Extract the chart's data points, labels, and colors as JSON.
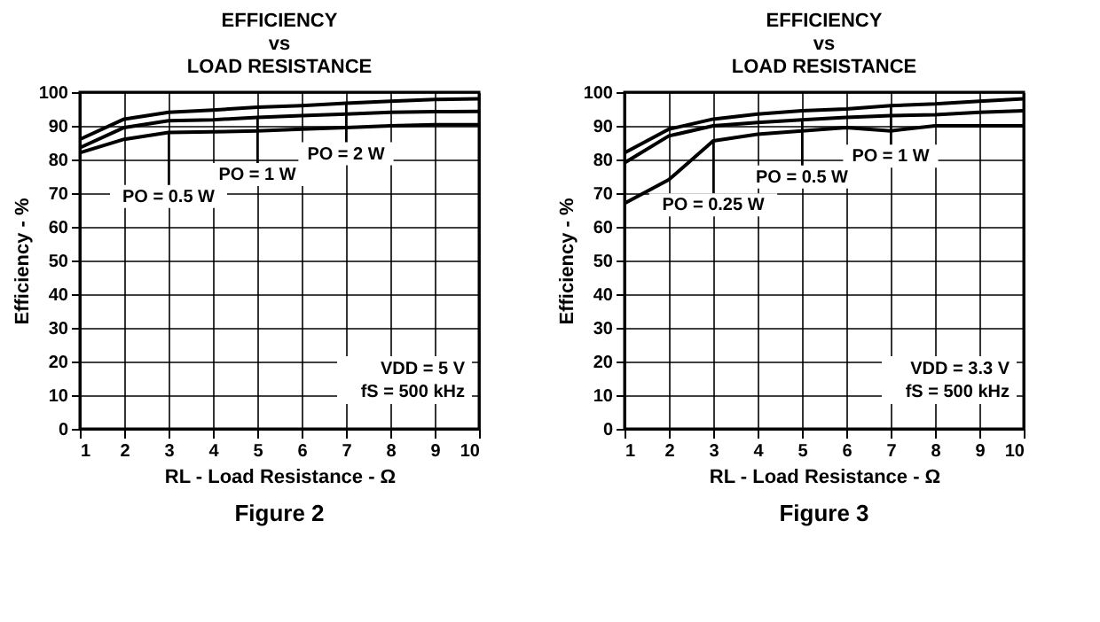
{
  "chart_data": [
    {
      "type": "line",
      "title": "EFFICIENCY\nvs\nLOAD RESISTANCE",
      "xlabel": "RL - Load Resistance - Ω",
      "ylabel": "Efficiency - %",
      "x": [
        1,
        2,
        3,
        4,
        5,
        6,
        7,
        8,
        9,
        10
      ],
      "series": [
        {
          "name": "PO = 2 W",
          "color": "#000000",
          "values": [
            86,
            92,
            94,
            94.7,
            95.5,
            96,
            96.7,
            97.3,
            97.8,
            98
          ]
        },
        {
          "name": "PO = 1 W",
          "color": "#000000",
          "values": [
            83.5,
            89.5,
            91.5,
            91.8,
            92.5,
            93,
            93.5,
            94,
            94.2,
            94.3
          ]
        },
        {
          "name": "PO = 0.5 W",
          "color": "#000000",
          "values": [
            82,
            86,
            88,
            88.2,
            88.5,
            89,
            89.5,
            90,
            90.3,
            90.3
          ]
        }
      ],
      "xlim": [
        1,
        10
      ],
      "xticks": [
        1,
        2,
        3,
        4,
        5,
        6,
        7,
        8,
        9,
        10
      ],
      "ylim": [
        0,
        100
      ],
      "yticks": [
        0,
        10,
        20,
        30,
        40,
        50,
        60,
        70,
        80,
        90,
        100
      ],
      "grid": true,
      "legend": false,
      "marker": "none",
      "line_style": "solid",
      "annotations": [
        "VDD = 5 V",
        "fS = 500 kHz",
        "Figure 2"
      ]
    },
    {
      "type": "line",
      "title": "EFFICIENCY\nvs\nLOAD RESISTANCE",
      "xlabel": "RL - Load Resistance - Ω",
      "ylabel": "Efficiency - %",
      "x": [
        1,
        2,
        3,
        4,
        5,
        6,
        7,
        8,
        9,
        10
      ],
      "series": [
        {
          "name": "PO = 1 W",
          "color": "#000000",
          "values": [
            82,
            89,
            92,
            93.5,
            94.5,
            95,
            96,
            96.5,
            97.3,
            98
          ]
        },
        {
          "name": "PO = 0.5 W",
          "color": "#000000",
          "values": [
            79,
            87,
            90,
            91,
            91.8,
            92.5,
            93,
            93.3,
            94,
            94.5
          ]
        },
        {
          "name": "PO = 0.25 W",
          "color": "#000000",
          "values": [
            67,
            74,
            85.5,
            87.5,
            88.5,
            89.5,
            88.5,
            90,
            90,
            90
          ]
        }
      ],
      "xlim": [
        1,
        10
      ],
      "xticks": [
        1,
        2,
        3,
        4,
        5,
        6,
        7,
        8,
        9,
        10
      ],
      "ylim": [
        0,
        100
      ],
      "yticks": [
        0,
        10,
        20,
        30,
        40,
        50,
        60,
        70,
        80,
        90,
        100
      ],
      "grid": true,
      "legend": false,
      "marker": "none",
      "line_style": "solid",
      "annotations": [
        "VDD = 3.3 V",
        "fS = 500 kHz",
        "Figure 3"
      ]
    }
  ]
}
